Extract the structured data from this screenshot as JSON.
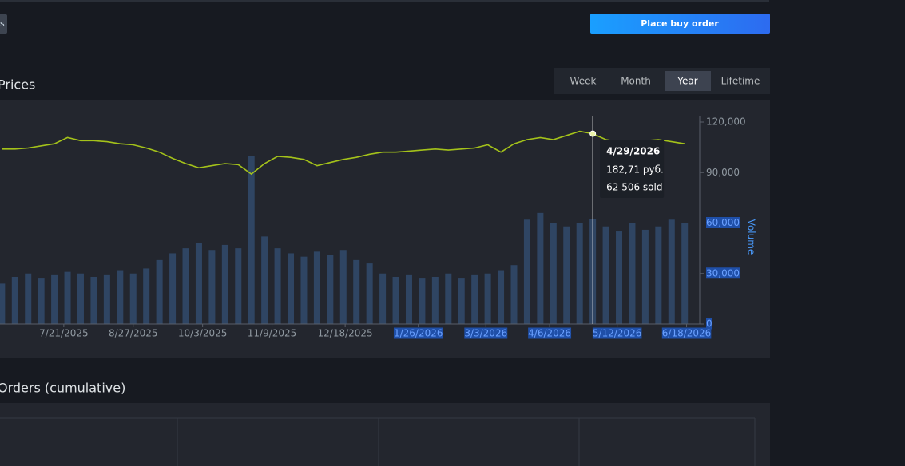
{
  "header": {
    "cut_button": "s",
    "buy_button": "Place buy order"
  },
  "range_tabs": {
    "tabs": [
      "Week",
      "Month",
      "Year",
      "Lifetime"
    ],
    "active_index": 2
  },
  "prices_title": "Prices",
  "chart_data": {
    "type": "line+bar",
    "x": [
      "6/18/2025",
      "6/25/2025",
      "7/2/2025",
      "7/9/2025",
      "7/16/2025",
      "7/23/2025",
      "7/30/2025",
      "8/6/2025",
      "8/13/2025",
      "8/20/2025",
      "8/27/2025",
      "9/3/2025",
      "9/10/2025",
      "9/17/2025",
      "9/24/2025",
      "10/1/2025",
      "10/8/2025",
      "10/15/2025",
      "10/22/2025",
      "10/29/2025",
      "11/5/2025",
      "11/12/2025",
      "11/19/2025",
      "11/26/2025",
      "12/3/2025",
      "12/10/2025",
      "12/17/2025",
      "12/24/2025",
      "12/31/2025",
      "1/7/2026",
      "1/14/2026",
      "1/21/2026",
      "1/28/2026",
      "2/4/2026",
      "2/11/2026",
      "2/18/2026",
      "2/25/2026",
      "3/4/2026",
      "3/11/2026",
      "3/18/2026",
      "3/25/2026",
      "4/1/2026",
      "4/8/2026",
      "4/15/2026",
      "4/22/2026",
      "4/29/2026",
      "5/6/2026",
      "5/13/2026",
      "5/20/2026",
      "5/27/2026",
      "6/3/2026",
      "6/10/2026",
      "6/17/2026"
    ],
    "xlim": [
      "6/17/2025",
      "6/25/2026"
    ],
    "xticks": [
      "7/21/2025",
      "8/27/2025",
      "10/3/2025",
      "11/9/2025",
      "12/18/2025",
      "1/26/2026",
      "3/3/2026",
      "4/6/2026",
      "5/12/2026",
      "6/18/2026"
    ],
    "series": [
      {
        "color": "#a4c21a",
        "values": [
          168,
          168,
          169,
          171,
          173,
          179,
          176,
          176,
          175,
          173,
          172,
          169,
          165,
          159,
          154,
          150,
          152,
          154,
          153,
          144,
          154,
          161,
          160,
          158,
          152,
          155,
          158,
          160,
          163,
          165,
          165,
          166,
          167,
          168,
          167,
          168,
          169,
          172,
          165,
          173,
          177,
          179,
          177,
          181,
          185,
          182.71,
          177,
          175,
          175,
          176,
          177,
          175,
          173
        ]
      },
      {
        "color": "#2f4563",
        "axis": "y2",
        "values": [
          24000,
          28000,
          30000,
          27000,
          29000,
          31000,
          30000,
          28000,
          29000,
          32000,
          30000,
          33000,
          38000,
          42000,
          45000,
          48000,
          44000,
          47000,
          45000,
          100000,
          52000,
          45000,
          42000,
          40000,
          43000,
          41000,
          44000,
          38000,
          36000,
          30000,
          28000,
          29000,
          27000,
          28000,
          30000,
          27000,
          29000,
          30000,
          32000,
          35000,
          62000,
          66000,
          60000,
          58000,
          60000,
          62506,
          58000,
          55000,
          60000,
          56000,
          58000,
          62000,
          60000
        ]
      }
    ],
    "ylim": [
      0,
      200
    ],
    "y2lim": [
      0,
      120000
    ],
    "y2ticks": [
      0,
      {
        "value": 30000,
        "label": "30,000"
      },
      {
        "value": 60000,
        "label": "60,000"
      },
      {
        "value": 90000,
        "label": "90,000"
      },
      {
        "value": 120000,
        "label": "120,000"
      }
    ],
    "y2label": "Volume",
    "tooltip": {
      "date": "4/29/2026",
      "price": "182,71 руб.",
      "sold": "62 506 sold"
    }
  },
  "orders_title": "Orders (cumulative)"
}
